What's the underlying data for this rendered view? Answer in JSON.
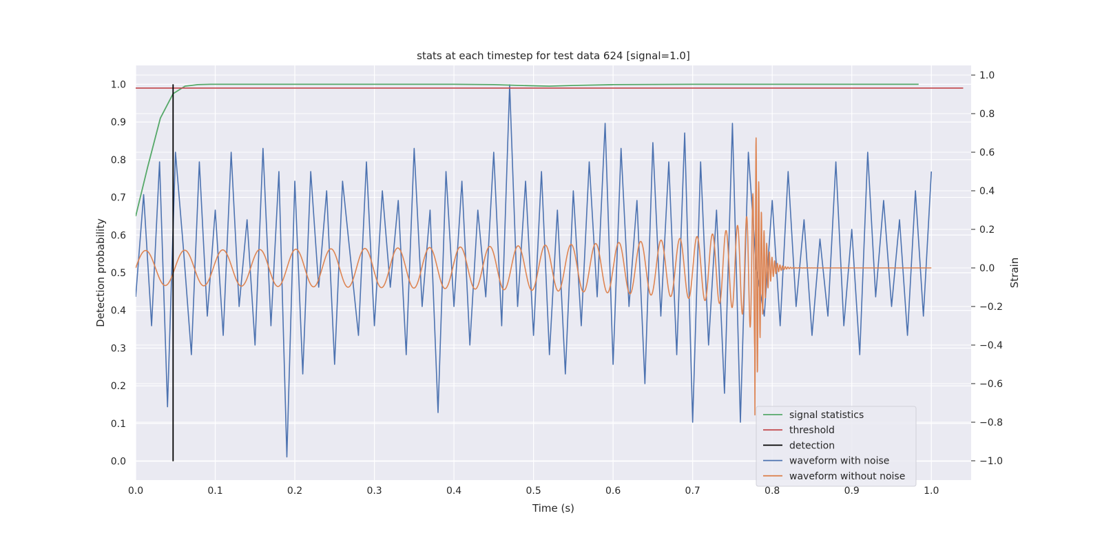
{
  "chart_data": {
    "type": "line",
    "title": "stats at each timestep for test data 624 [signal=1.0]",
    "xlabel": "Time (s)",
    "ylabel": "Detection probability",
    "ylabel_right": "Strain",
    "xlim": [
      0.0,
      1.05
    ],
    "ylim": [
      -0.05,
      1.05
    ],
    "ylim_right": [
      -1.1,
      1.05
    ],
    "x_ticks": [
      "0.0",
      "0.1",
      "0.2",
      "0.3",
      "0.4",
      "0.5",
      "0.6",
      "0.7",
      "0.8",
      "0.9",
      "1.0"
    ],
    "y_ticks": [
      "0.0",
      "0.1",
      "0.2",
      "0.3",
      "0.4",
      "0.5",
      "0.6",
      "0.7",
      "0.8",
      "0.9",
      "1.0"
    ],
    "y_right_ticks": [
      "−1.0",
      "−0.8",
      "−0.6",
      "−0.4",
      "−0.2",
      "0.0",
      "0.2",
      "0.4",
      "0.6",
      "0.8",
      "1.0"
    ],
    "grid": true,
    "legend_position": "bottom-right",
    "series": [
      {
        "name": "signal statistics",
        "color": "#55a868",
        "axis": "left",
        "x": [
          0.0,
          0.015,
          0.031,
          0.047,
          0.062,
          0.078,
          0.094,
          0.2,
          0.3,
          0.4,
          0.45,
          0.5,
          0.52,
          0.55,
          0.6,
          0.7,
          0.8,
          0.9,
          0.984
        ],
        "y": [
          0.65,
          0.78,
          0.91,
          0.975,
          0.995,
          0.999,
          1.0,
          1.0,
          1.0,
          1.0,
          0.999,
          0.996,
          0.995,
          0.997,
          0.999,
          1.0,
          1.0,
          1.0,
          1.0
        ]
      },
      {
        "name": "threshold",
        "color": "#c44e52",
        "axis": "left",
        "x": [
          0.0,
          1.04
        ],
        "y": [
          0.99,
          0.99
        ]
      },
      {
        "name": "detection",
        "color": "#000000",
        "axis": "left",
        "x": [
          0.047,
          0.047
        ],
        "y": [
          0.0,
          1.0
        ]
      },
      {
        "name": "waveform with noise",
        "color": "#4c72b0",
        "axis": "right",
        "x": [
          0.0,
          0.01,
          0.02,
          0.03,
          0.04,
          0.05,
          0.06,
          0.07,
          0.08,
          0.09,
          0.1,
          0.11,
          0.12,
          0.13,
          0.14,
          0.15,
          0.16,
          0.17,
          0.18,
          0.19,
          0.2,
          0.21,
          0.22,
          0.23,
          0.24,
          0.25,
          0.26,
          0.27,
          0.28,
          0.29,
          0.3,
          0.31,
          0.32,
          0.33,
          0.34,
          0.35,
          0.36,
          0.37,
          0.38,
          0.39,
          0.4,
          0.41,
          0.42,
          0.43,
          0.44,
          0.45,
          0.46,
          0.47,
          0.48,
          0.49,
          0.5,
          0.51,
          0.52,
          0.53,
          0.54,
          0.55,
          0.56,
          0.57,
          0.58,
          0.59,
          0.6,
          0.61,
          0.62,
          0.63,
          0.64,
          0.65,
          0.66,
          0.67,
          0.68,
          0.69,
          0.7,
          0.71,
          0.72,
          0.73,
          0.74,
          0.75,
          0.76,
          0.77,
          0.78,
          0.79,
          0.8,
          0.81,
          0.82,
          0.83,
          0.84,
          0.85,
          0.86,
          0.87,
          0.88,
          0.89,
          0.9,
          0.91,
          0.92,
          0.93,
          0.94,
          0.95,
          0.96,
          0.97,
          0.98,
          0.99,
          1.0
        ],
        "y": [
          -0.15,
          0.38,
          -0.3,
          0.55,
          -0.72,
          0.6,
          0.1,
          -0.45,
          0.55,
          -0.25,
          0.3,
          -0.35,
          0.6,
          -0.2,
          0.25,
          -0.4,
          0.62,
          -0.3,
          0.5,
          -0.98,
          0.45,
          -0.55,
          0.5,
          -0.1,
          0.4,
          -0.5,
          0.45,
          0.05,
          -0.35,
          0.55,
          -0.3,
          0.4,
          -0.1,
          0.35,
          -0.45,
          0.62,
          -0.2,
          0.3,
          -0.75,
          0.5,
          -0.2,
          0.45,
          -0.4,
          0.3,
          -0.15,
          0.6,
          -0.3,
          0.95,
          -0.2,
          0.45,
          -0.35,
          0.5,
          -0.45,
          0.3,
          -0.55,
          0.4,
          -0.3,
          0.55,
          -0.15,
          0.75,
          -0.5,
          0.62,
          -0.2,
          0.35,
          -0.6,
          0.65,
          -0.25,
          0.55,
          -0.45,
          0.7,
          -0.8,
          0.55,
          -0.4,
          0.3,
          -0.65,
          0.75,
          -0.8,
          0.6,
          0.0,
          -0.25,
          0.35,
          -0.3,
          0.5,
          -0.2,
          0.25,
          -0.35,
          0.15,
          -0.25,
          0.55,
          -0.3,
          0.2,
          -0.45,
          0.6,
          -0.15,
          0.35,
          -0.2,
          0.25,
          -0.35,
          0.4,
          -0.25,
          0.5
        ]
      },
      {
        "name": "waveform without noise",
        "color": "#dd8452",
        "axis": "right",
        "t_start": 0.0,
        "t_end": 1.0,
        "merger_time": 0.778,
        "ringdown_end": 0.81,
        "peak_strain": 0.84,
        "early_amplitude": 0.09,
        "early_frequency_hz": 20
      }
    ],
    "legend": [
      {
        "name": "signal statistics",
        "color": "#55a868"
      },
      {
        "name": "threshold",
        "color": "#c44e52"
      },
      {
        "name": "detection",
        "color": "#000000"
      },
      {
        "name": "waveform with noise",
        "color": "#4c72b0"
      },
      {
        "name": "waveform without noise",
        "color": "#dd8452"
      }
    ],
    "colors": {
      "plot_background": "#eaeaf2",
      "grid": "#ffffff",
      "text": "#262626"
    }
  }
}
